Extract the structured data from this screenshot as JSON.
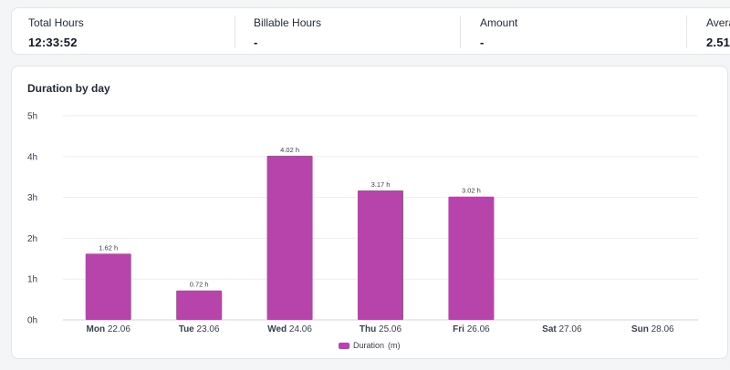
{
  "stats": [
    {
      "label": "Total Hours",
      "value": "12:33:52"
    },
    {
      "label": "Billable Hours",
      "value": "-"
    },
    {
      "label": "Amount",
      "value": "-"
    },
    {
      "label": "Avera",
      "value": "2.51"
    }
  ],
  "colors": {
    "bar": "#b744ab",
    "grid": "#eceef1",
    "axis": "#d4d7dc"
  },
  "chart_data": {
    "type": "bar",
    "title": "Duration by day",
    "categories": [
      {
        "day": "Mon",
        "date": "22.06"
      },
      {
        "day": "Tue",
        "date": "23.06"
      },
      {
        "day": "Wed",
        "date": "24.06"
      },
      {
        "day": "Thu",
        "date": "25.06"
      },
      {
        "day": "Fri",
        "date": "26.06"
      },
      {
        "day": "Sat",
        "date": "27.06"
      },
      {
        "day": "Sun",
        "date": "28.06"
      }
    ],
    "values": [
      1.62,
      0.72,
      4.02,
      3.17,
      3.02,
      null,
      null
    ],
    "data_labels": [
      "1.62 h",
      "0.72 h",
      "4.02 h",
      "3.17 h",
      "3.02 h",
      "",
      ""
    ],
    "y_ticks": [
      "0h",
      "1h",
      "2h",
      "3h",
      "4h",
      "5h"
    ],
    "ylim": [
      0,
      5
    ],
    "grid": true,
    "legend": {
      "position": "bottom",
      "entries": [
        {
          "label": "Duration",
          "unit": "(m)"
        }
      ]
    }
  }
}
